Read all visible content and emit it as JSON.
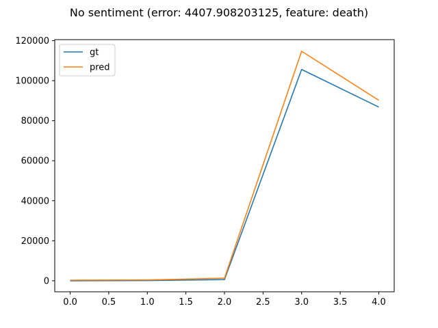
{
  "chart_data": {
    "type": "line",
    "title": "No sentiment (error: 4407.908203125, feature: death)",
    "xlabel": "",
    "ylabel": "",
    "x": [
      0,
      1,
      2,
      3,
      4
    ],
    "series": [
      {
        "name": "gt",
        "color": "#1f77b4",
        "values": [
          0,
          100,
          600,
          105600,
          86800
        ]
      },
      {
        "name": "pred",
        "color": "#ff7f0e",
        "values": [
          300,
          400,
          1300,
          114700,
          90200
        ]
      }
    ],
    "xlim": [
      -0.2,
      4.2
    ],
    "ylim": [
      -5500,
      120500
    ],
    "xticks": [
      0.0,
      0.5,
      1.0,
      1.5,
      2.0,
      2.5,
      3.0,
      3.5,
      4.0
    ],
    "xtick_labels": [
      "0.0",
      "0.5",
      "1.0",
      "1.5",
      "2.0",
      "2.5",
      "3.0",
      "3.5",
      "4.0"
    ],
    "yticks": [
      0,
      20000,
      40000,
      60000,
      80000,
      100000,
      120000
    ],
    "ytick_labels": [
      "0",
      "20000",
      "40000",
      "60000",
      "80000",
      "100000",
      "120000"
    ],
    "grid": false,
    "legend_position": "top-left"
  }
}
